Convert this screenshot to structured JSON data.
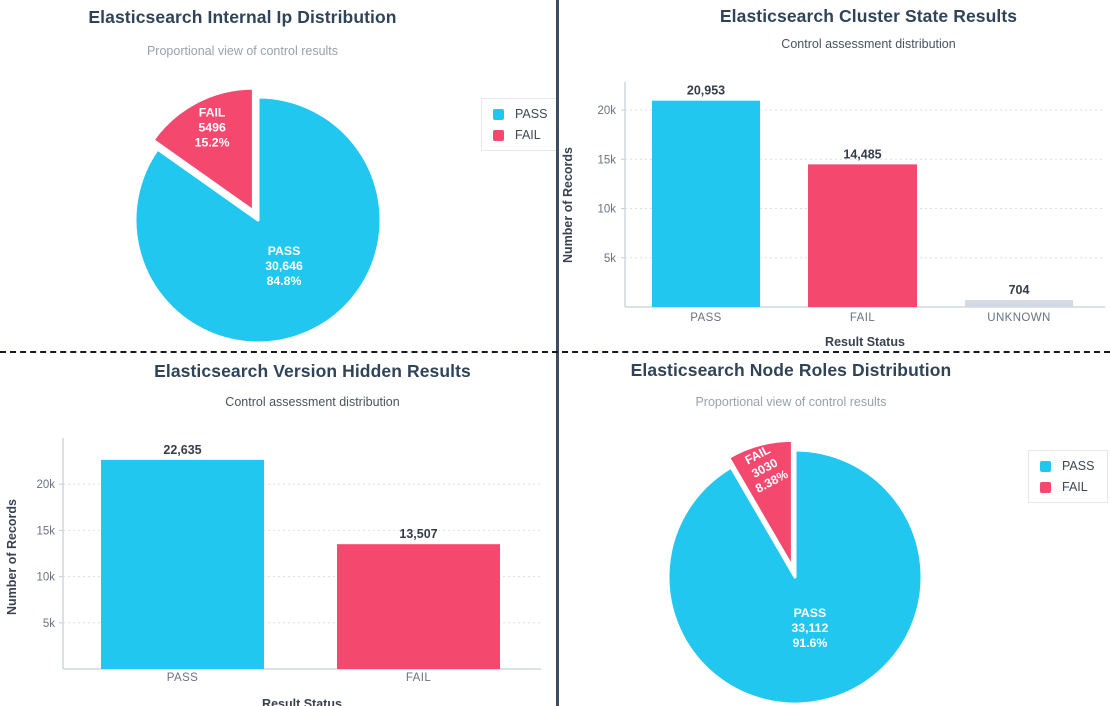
{
  "page": {
    "background": "#ffffff",
    "divider_vertical_color": "#3a4f63",
    "divider_horizontal_color": "#15181e"
  },
  "colors": {
    "pass": "#22c7f0",
    "fail": "#f4486e",
    "unknown": "#d3dae6"
  },
  "chart_data": [
    {
      "type": "pie",
      "title": "Elasticsearch Internal Ip Distribution",
      "subtitle": "Proportional view of control results",
      "subtitle_color": "#98a1ae",
      "slices": [
        {
          "label": "PASS",
          "value": 30646,
          "display_value": "30,646",
          "percent": "84.8%",
          "color": "#22c7f0",
          "exploded": false
        },
        {
          "label": "FAIL",
          "value": 5496,
          "display_value": "5496",
          "percent": "15.2%",
          "color": "#f4486e",
          "exploded": true
        }
      ],
      "legend": {
        "position": "right",
        "entries": [
          {
            "label": "PASS",
            "color": "#22c7f0"
          },
          {
            "label": "FAIL",
            "color": "#f4486e"
          }
        ]
      }
    },
    {
      "type": "bar",
      "title": "Elasticsearch Cluster State Results",
      "subtitle": "Control assessment distribution",
      "subtitle_color": "#4a5260",
      "xlabel": "Result Status",
      "ylabel": "Number of Records",
      "categories": [
        "PASS",
        "FAIL",
        "UNKNOWN"
      ],
      "values": [
        20953,
        14485,
        704
      ],
      "display_values": [
        "20,953",
        "14,485",
        "704"
      ],
      "colors": [
        "#22c7f0",
        "#f4486e",
        "#d3dae6"
      ],
      "yticks": [
        {
          "label": "5k",
          "value": 5000
        },
        {
          "label": "10k",
          "value": 10000
        },
        {
          "label": "15k",
          "value": 15000
        },
        {
          "label": "20k",
          "value": 20000
        }
      ],
      "ylim": [
        0,
        22850
      ],
      "grid": true,
      "legend": null
    },
    {
      "type": "bar",
      "title": "Elasticsearch Version Hidden Results",
      "subtitle": "Control assessment distribution",
      "subtitle_color": "#4a5260",
      "xlabel": "Result Status",
      "ylabel": "Number of Records",
      "categories": [
        "PASS",
        "FAIL"
      ],
      "values": [
        22635,
        13507
      ],
      "display_values": [
        "22,635",
        "13,507"
      ],
      "colors": [
        "#22c7f0",
        "#f4486e"
      ],
      "yticks": [
        {
          "label": "5k",
          "value": 5000
        },
        {
          "label": "10k",
          "value": 10000
        },
        {
          "label": "15k",
          "value": 15000
        },
        {
          "label": "20k",
          "value": 20000
        }
      ],
      "ylim": [
        0,
        25000
      ],
      "grid": true,
      "legend": null
    },
    {
      "type": "pie",
      "title": "Elasticsearch Node Roles Distribution",
      "subtitle": "Proportional view of control results",
      "subtitle_color": "#98a1ae",
      "slices": [
        {
          "label": "PASS",
          "value": 33112,
          "display_value": "33,112",
          "percent": "91.6%",
          "color": "#22c7f0",
          "exploded": false
        },
        {
          "label": "FAIL",
          "value": 3030,
          "display_value": "3030",
          "percent": "8.38%",
          "color": "#f4486e",
          "exploded": true
        }
      ],
      "legend": {
        "position": "right",
        "entries": [
          {
            "label": "PASS",
            "color": "#22c7f0"
          },
          {
            "label": "FAIL",
            "color": "#f4486e"
          }
        ]
      }
    }
  ]
}
